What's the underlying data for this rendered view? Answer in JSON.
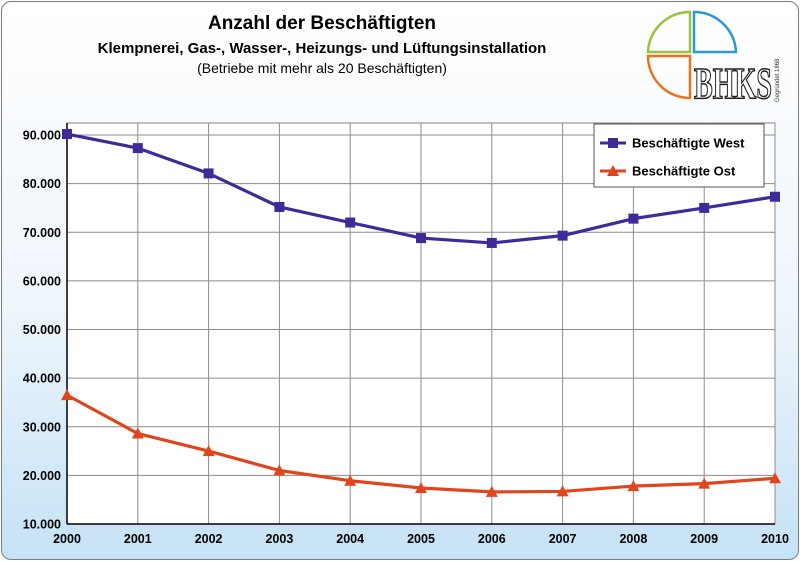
{
  "chart_data": {
    "type": "line",
    "title": "Anzahl der Beschäftigten",
    "subtitle": "Klempnerei, Gas-, Wasser-, Heizungs- und Lüftungsinstallation",
    "subtitle2": "(Betriebe mit mehr als 20 Beschäftigten)",
    "x": [
      "2000",
      "2001",
      "2002",
      "2003",
      "2004",
      "2005",
      "2006",
      "2007",
      "2008",
      "2009",
      "2010"
    ],
    "ylim": [
      10000,
      90000
    ],
    "yticks": [
      10000,
      20000,
      30000,
      40000,
      50000,
      60000,
      70000,
      80000,
      90000
    ],
    "ytick_labels": [
      "10.000",
      "20.000",
      "30.000",
      "40.000",
      "50.000",
      "60.000",
      "70.000",
      "80.000",
      "90.000"
    ],
    "grid": true,
    "legend_position": "top-right",
    "series": [
      {
        "name": "Beschäftigte West",
        "color": "#3f2a99",
        "marker": "square",
        "values": [
          90200,
          87300,
          82100,
          75200,
          72000,
          68800,
          67800,
          69300,
          72800,
          75000,
          77300
        ]
      },
      {
        "name": "Beschäftigte Ost",
        "color": "#e0451b",
        "marker": "triangle",
        "values": [
          36500,
          28600,
          25000,
          21000,
          18900,
          17400,
          16600,
          16700,
          17800,
          18300,
          19400
        ]
      }
    ]
  },
  "logo": {
    "text": "BHKS",
    "small_text": "Gegründet 1868",
    "colors": [
      "#9ac13f",
      "#2c9ad2",
      "#e8731c"
    ]
  }
}
